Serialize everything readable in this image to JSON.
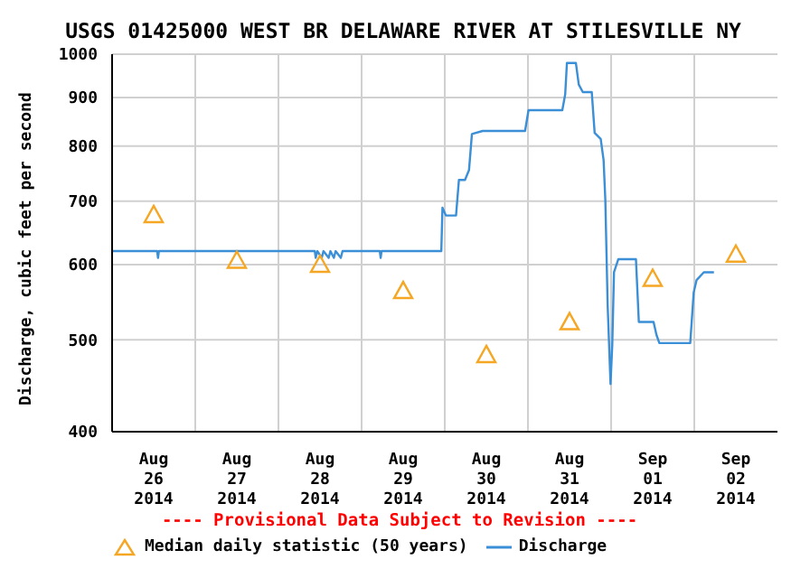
{
  "chart_data": {
    "type": "line",
    "title": "USGS 01425000 WEST BR DELAWARE RIVER AT STILESVILLE NY",
    "ylabel": "Discharge, cubic feet per second",
    "annotations": [
      "---- Provisional Data Subject to Revision ----"
    ],
    "series": [
      {
        "name": "Median daily statistic (50 years)",
        "type": "scatter",
        "marker": "triangle",
        "color": "#f5a623",
        "x": [
          "2014-08-26T12:00",
          "2014-08-27T12:00",
          "2014-08-28T12:00",
          "2014-08-29T12:00",
          "2014-08-30T12:00",
          "2014-08-31T12:00",
          "2014-09-01T12:00",
          "2014-09-02T12:00"
        ],
        "values": [
          677,
          606,
          600,
          563,
          482,
          522,
          580,
          615
        ]
      },
      {
        "name": "Discharge",
        "type": "line",
        "color": "#3b8fd6",
        "x": [
          "2014-08-26T00:00",
          "2014-08-26T13:00",
          "2014-08-26T13:15",
          "2014-08-26T13:30",
          "2014-08-28T10:30",
          "2014-08-28T10:45",
          "2014-08-28T11:15",
          "2014-08-28T12:30",
          "2014-08-28T13:00",
          "2014-08-28T14:30",
          "2014-08-28T15:00",
          "2014-08-28T16:00",
          "2014-08-28T16:30",
          "2014-08-28T18:00",
          "2014-08-28T18:30",
          "2014-08-29T05:15",
          "2014-08-29T05:30",
          "2014-08-29T05:45",
          "2014-08-29T23:00",
          "2014-08-29T23:20",
          "2014-08-30T00:20",
          "2014-08-30T03:15",
          "2014-08-30T04:05",
          "2014-08-30T05:50",
          "2014-08-30T07:00",
          "2014-08-30T07:50",
          "2014-08-30T10:55",
          "2014-08-30T23:10",
          "2014-08-31T00:10",
          "2014-08-31T09:55",
          "2014-08-31T10:45",
          "2014-08-31T11:15",
          "2014-08-31T13:50",
          "2014-08-31T14:40",
          "2014-08-31T15:50",
          "2014-08-31T18:25",
          "2014-08-31T19:15",
          "2014-08-31T21:00",
          "2014-08-31T21:50",
          "2014-08-31T22:20",
          "2014-08-31T23:00",
          "2014-08-31T23:50",
          "2014-09-01T00:20",
          "2014-09-01T00:50",
          "2014-09-01T02:05",
          "2014-09-01T07:10",
          "2014-09-01T08:00",
          "2014-09-01T12:15",
          "2014-09-01T13:05",
          "2014-09-01T13:55",
          "2014-09-01T22:50",
          "2014-09-01T23:50",
          "2014-09-02T00:40",
          "2014-09-02T02:45",
          "2014-09-02T05:40"
        ],
        "values": [
          620,
          620,
          610,
          620,
          620,
          610,
          620,
          610,
          620,
          610,
          620,
          610,
          620,
          610,
          620,
          620,
          610,
          620,
          620,
          689,
          676,
          676,
          737,
          737,
          755,
          824,
          830,
          830,
          873,
          873,
          907,
          979,
          979,
          929,
          912,
          912,
          826,
          814,
          773,
          702,
          544,
          449,
          494,
          589,
          608,
          608,
          522,
          522,
          506,
          496,
          496,
          561,
          578,
          589,
          589
        ]
      }
    ],
    "xlim": [
      "2014-08-26T00:00",
      "2014-09-03T00:00"
    ],
    "xticks": [
      {
        "value": "2014-08-26T12:00",
        "label": "Aug 26 2014"
      },
      {
        "value": "2014-08-27T12:00",
        "label": "Aug 27 2014"
      },
      {
        "value": "2014-08-28T12:00",
        "label": "Aug 28 2014"
      },
      {
        "value": "2014-08-29T12:00",
        "label": "Aug 29 2014"
      },
      {
        "value": "2014-08-30T12:00",
        "label": "Aug 30 2014"
      },
      {
        "value": "2014-08-31T12:00",
        "label": "Aug 31 2014"
      },
      {
        "value": "2014-09-01T12:00",
        "label": "Sep 01 2014"
      },
      {
        "value": "2014-09-02T12:00",
        "label": "Sep 02 2014"
      },
      {
        "value": "2014-08-27T00:00",
        "label": null
      },
      {
        "value": "2014-08-28T00:00",
        "label": null
      },
      {
        "value": "2014-08-29T00:00",
        "label": null
      },
      {
        "value": "2014-08-30T00:00",
        "label": null
      },
      {
        "value": "2014-08-31T00:00",
        "label": null
      },
      {
        "value": "2014-09-01T00:00",
        "label": null
      },
      {
        "value": "2014-09-02T00:00",
        "label": null
      }
    ],
    "ylim": [
      400,
      1000
    ],
    "yticks": [
      400,
      500,
      600,
      700,
      800,
      900,
      1000
    ],
    "log": true,
    "grid": true,
    "legend": "bottom"
  }
}
